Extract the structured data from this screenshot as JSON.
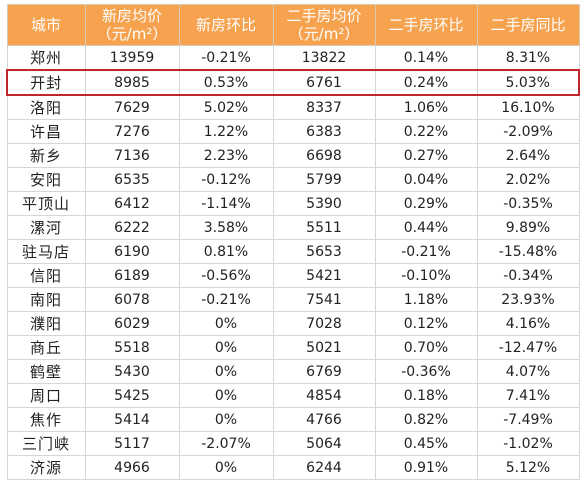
{
  "headers": {
    "city": "城市",
    "new_price_line1": "新房均价",
    "new_price_line2": "（元/m²）",
    "new_mom": "新房环比",
    "second_price_line1": "二手房均价",
    "second_price_line2": "（元/m²）",
    "second_mom": "二手房环比",
    "second_yoy": "二手房同比"
  },
  "highlight_color": "#c0262b",
  "header_bg": "#f6a24f",
  "rows": [
    {
      "city": "郑州",
      "new_price": "13959",
      "new_mom": "-0.21%",
      "second_price": "13822",
      "second_mom": "0.14%",
      "second_yoy": "8.31%"
    },
    {
      "city": "开封",
      "new_price": "8985",
      "new_mom": "0.53%",
      "second_price": "6761",
      "second_mom": "0.24%",
      "second_yoy": "5.03%"
    },
    {
      "city": "洛阳",
      "new_price": "7629",
      "new_mom": "5.02%",
      "second_price": "8337",
      "second_mom": "1.06%",
      "second_yoy": "16.10%"
    },
    {
      "city": "许昌",
      "new_price": "7276",
      "new_mom": "1.22%",
      "second_price": "6383",
      "second_mom": "0.22%",
      "second_yoy": "-2.09%"
    },
    {
      "city": "新乡",
      "new_price": "7136",
      "new_mom": "2.23%",
      "second_price": "6698",
      "second_mom": "0.27%",
      "second_yoy": "2.64%"
    },
    {
      "city": "安阳",
      "new_price": "6535",
      "new_mom": "-0.12%",
      "second_price": "5799",
      "second_mom": "0.04%",
      "second_yoy": "2.02%"
    },
    {
      "city": "平顶山",
      "new_price": "6412",
      "new_mom": "-1.14%",
      "second_price": "5390",
      "second_mom": "0.29%",
      "second_yoy": "-0.35%"
    },
    {
      "city": "漯河",
      "new_price": "6222",
      "new_mom": "3.58%",
      "second_price": "5511",
      "second_mom": "0.44%",
      "second_yoy": "9.89%"
    },
    {
      "city": "驻马店",
      "new_price": "6190",
      "new_mom": "0.81%",
      "second_price": "5653",
      "second_mom": "-0.21%",
      "second_yoy": "-15.48%"
    },
    {
      "city": "信阳",
      "new_price": "6189",
      "new_mom": "-0.56%",
      "second_price": "5421",
      "second_mom": "-0.10%",
      "second_yoy": "-0.34%"
    },
    {
      "city": "南阳",
      "new_price": "6078",
      "new_mom": "-0.21%",
      "second_price": "7541",
      "second_mom": "1.18%",
      "second_yoy": "23.93%"
    },
    {
      "city": "濮阳",
      "new_price": "6029",
      "new_mom": "0%",
      "second_price": "7028",
      "second_mom": "0.12%",
      "second_yoy": "4.16%"
    },
    {
      "city": "商丘",
      "new_price": "5518",
      "new_mom": "0%",
      "second_price": "5021",
      "second_mom": "0.70%",
      "second_yoy": "-12.47%"
    },
    {
      "city": "鹤壁",
      "new_price": "5430",
      "new_mom": "0%",
      "second_price": "6769",
      "second_mom": "-0.36%",
      "second_yoy": "4.07%"
    },
    {
      "city": "周口",
      "new_price": "5425",
      "new_mom": "0%",
      "second_price": "4854",
      "second_mom": "0.18%",
      "second_yoy": "7.41%"
    },
    {
      "city": "焦作",
      "new_price": "5414",
      "new_mom": "0%",
      "second_price": "4766",
      "second_mom": "0.82%",
      "second_yoy": "-7.49%"
    },
    {
      "city": "三门峡",
      "new_price": "5117",
      "new_mom": "-2.07%",
      "second_price": "5064",
      "second_mom": "0.45%",
      "second_yoy": "-1.02%"
    },
    {
      "city": "济源",
      "new_price": "4966",
      "new_mom": "0%",
      "second_price": "6244",
      "second_mom": "0.91%",
      "second_yoy": "5.12%"
    }
  ]
}
